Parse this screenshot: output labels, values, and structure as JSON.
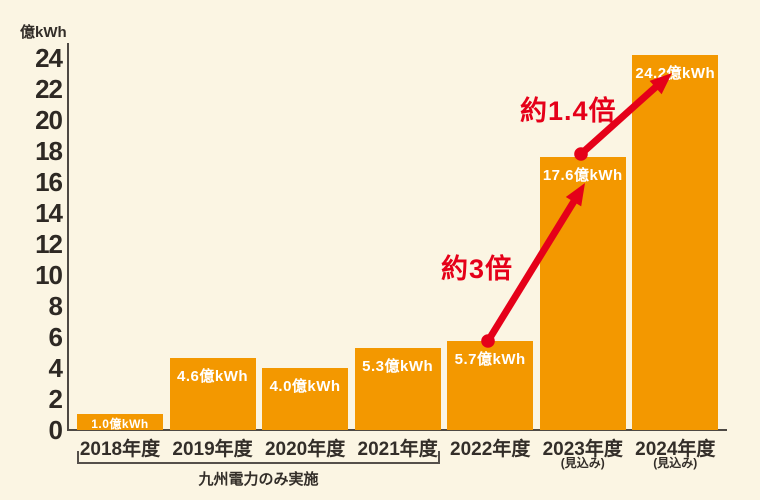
{
  "unit_label": "億kWh",
  "colors": {
    "background": "#FBF5E3",
    "bar": "#F39800",
    "bar_label_text": "#FFFFFF",
    "axis": "#4E4944",
    "bracket": "#55504B",
    "tick_text": "#2E2924",
    "label_text": "#332E29",
    "accent_red": "#E50019"
  },
  "y_axis": {
    "unit": "億kWh",
    "ticks": [
      "24",
      "22",
      "20",
      "18",
      "16",
      "14",
      "12",
      "10",
      "8",
      "6",
      "4",
      "2",
      "0"
    ]
  },
  "bracket": {
    "label": "九州電力のみ実施"
  },
  "annotations": {
    "growth_1": "約3倍",
    "growth_2": "約1.4倍"
  },
  "chart_data": {
    "type": "bar",
    "categories": [
      "2018年度",
      "2019年度",
      "2020年度",
      "2021年度",
      "2022年度",
      "2023年度",
      "2024年度"
    ],
    "category_notes": [
      "",
      "",
      "",
      "",
      "",
      "(見込み)",
      "(見込み)"
    ],
    "values": [
      1.0,
      4.6,
      4.0,
      5.3,
      5.7,
      17.6,
      24.2
    ],
    "bar_labels": [
      "1.0億kWh",
      "4.6億kWh",
      "4.0億kWh",
      "5.3億kWh",
      "5.7億kWh",
      "17.6億kWh",
      "24.2億kWh"
    ],
    "title": "",
    "xlabel": "",
    "ylabel": "億kWh",
    "ylim": [
      0,
      24
    ],
    "ytick_step": 2,
    "grid": false,
    "legend": false,
    "bracket_span_categories": [
      "2018年度",
      "2019年度",
      "2020年度",
      "2021年度"
    ],
    "bracket_label": "九州電力のみ実施",
    "annotations": [
      {
        "text": "約3倍",
        "from_category": "2022年度",
        "from_value": 5.7,
        "to_category": "2023年度",
        "to_value": 17.6
      },
      {
        "text": "約1.4倍",
        "from_category": "2023年度",
        "from_value": 17.6,
        "to_category": "2024年度",
        "to_value": 24.2
      }
    ]
  }
}
